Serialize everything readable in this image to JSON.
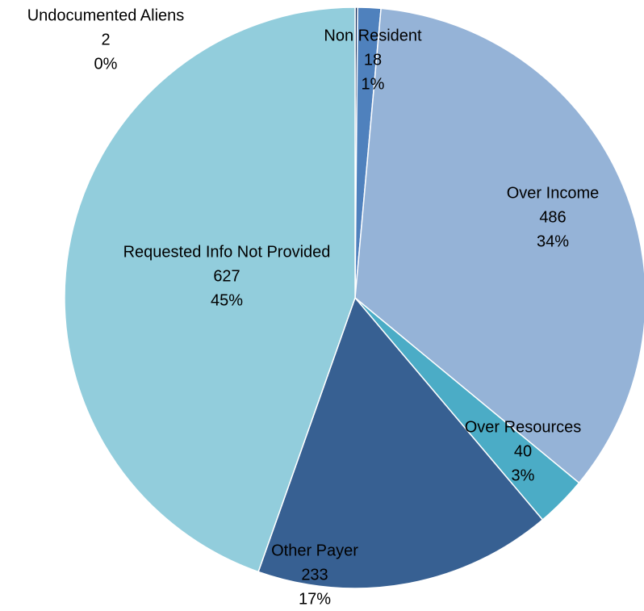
{
  "chart_data": {
    "type": "pie",
    "title": "",
    "slices": [
      {
        "name": "Undocumented Aliens",
        "value": 2,
        "percent": "0%",
        "color": "#1f3864"
      },
      {
        "name": "Non Resident",
        "value": 18,
        "percent": "1%",
        "color": "#4f81bd"
      },
      {
        "name": "Over Income",
        "value": 486,
        "percent": "34%",
        "color": "#95b3d7"
      },
      {
        "name": "Over Resources",
        "value": 40,
        "percent": "3%",
        "color": "#4bacc6"
      },
      {
        "name": "Other Payer",
        "value": 233,
        "percent": "17%",
        "color": "#376092"
      },
      {
        "name": "Requested Info Not Provided",
        "value": 627,
        "percent": "45%",
        "color": "#92cddc"
      }
    ]
  }
}
